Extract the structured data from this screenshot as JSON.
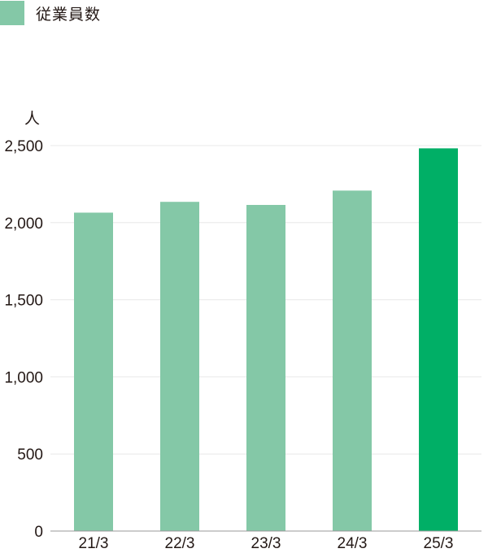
{
  "legend": {
    "label": "従業員数",
    "color": "#84c8a7"
  },
  "chart_data": {
    "type": "bar",
    "title": "",
    "xlabel": "",
    "ylabel": "人",
    "categories": [
      "21/3",
      "22/3",
      "23/3",
      "24/3",
      "25/3"
    ],
    "series": [
      {
        "name": "従業員数",
        "values": [
          2065,
          2135,
          2115,
          2208,
          2482
        ]
      }
    ],
    "highlight_index": 4,
    "colors": {
      "bar": "#84c8a7",
      "highlight": "#00af66",
      "grid": "#e8e8e8",
      "axis": "#999999"
    },
    "ylim": [
      0,
      2500
    ],
    "yticks": [
      "0",
      "500",
      "1,000",
      "1,500",
      "2,000",
      "2,500"
    ],
    "ytick_values": [
      0,
      500,
      1000,
      1500,
      2000,
      2500
    ],
    "grid": true,
    "legend_position": "top-left"
  }
}
